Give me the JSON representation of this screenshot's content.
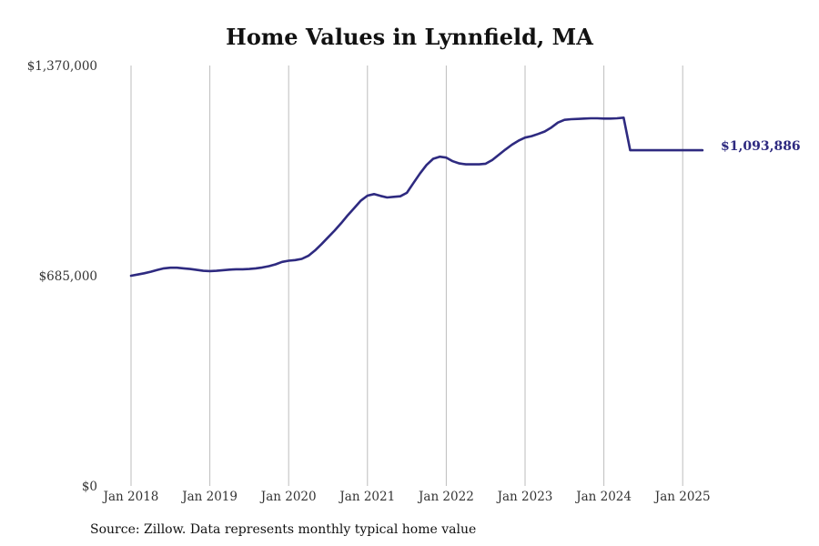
{
  "chart_data": {
    "type": "line",
    "title": "Home Values in Lynnfield, MA",
    "source": "Source: Zillow. Data represents monthly typical home value",
    "ylim": [
      0,
      1370000
    ],
    "yticks": [
      {
        "value": 0,
        "label": "$0"
      },
      {
        "value": 685000,
        "label": "$685,000"
      },
      {
        "value": 1370000,
        "label": "$1,370,000"
      }
    ],
    "xticks": [
      {
        "date": "2018-01",
        "label": "Jan 2018"
      },
      {
        "date": "2019-01",
        "label": "Jan 2019"
      },
      {
        "date": "2020-01",
        "label": "Jan 2020"
      },
      {
        "date": "2021-01",
        "label": "Jan 2021"
      },
      {
        "date": "2022-01",
        "label": "Jan 2022"
      },
      {
        "date": "2023-01",
        "label": "Jan 2023"
      },
      {
        "date": "2024-01",
        "label": "Jan 2024"
      },
      {
        "date": "2025-01",
        "label": "Jan 2025"
      }
    ],
    "grid": {
      "vertical": true,
      "horizontal": false
    },
    "line_color": "#2e2a80",
    "end_label": "$1,093,886",
    "series": [
      {
        "x": [
          "2018-01",
          "2018-02",
          "2018-03",
          "2018-04",
          "2018-05",
          "2018-06",
          "2018-07",
          "2018-08",
          "2018-09",
          "2018-10",
          "2018-11",
          "2018-12",
          "2019-01",
          "2019-02",
          "2019-03",
          "2019-04",
          "2019-05",
          "2019-06",
          "2019-07",
          "2019-08",
          "2019-09",
          "2019-10",
          "2019-11",
          "2019-12",
          "2020-01",
          "2020-02",
          "2020-03",
          "2020-04",
          "2020-05",
          "2020-06",
          "2020-07",
          "2020-08",
          "2020-09",
          "2020-10",
          "2020-11",
          "2020-12",
          "2021-01",
          "2021-02",
          "2021-03",
          "2021-04",
          "2021-05",
          "2021-06",
          "2021-07",
          "2021-08",
          "2021-09",
          "2021-10",
          "2021-11",
          "2021-12",
          "2022-01",
          "2022-02",
          "2022-03",
          "2022-04",
          "2022-05",
          "2022-06",
          "2022-07",
          "2022-08",
          "2022-09",
          "2022-10",
          "2022-11",
          "2022-12",
          "2023-01",
          "2023-02",
          "2023-03",
          "2023-04",
          "2023-05",
          "2023-06",
          "2023-07",
          "2023-08",
          "2023-09",
          "2023-10",
          "2023-11",
          "2023-12",
          "2024-01",
          "2024-02",
          "2024-03",
          "2024-04",
          "2024-05",
          "2024-06",
          "2024-07",
          "2024-08",
          "2024-09",
          "2024-10",
          "2024-11",
          "2024-12",
          "2025-01",
          "2025-02",
          "2025-03",
          "2025-04"
        ],
        "y": [
          685000,
          689000,
          693000,
          698000,
          704000,
          709000,
          711000,
          711000,
          709000,
          707000,
          704000,
          701000,
          700000,
          701000,
          703000,
          705000,
          706000,
          706000,
          707000,
          709000,
          712000,
          716000,
          722000,
          730000,
          734000,
          736000,
          740000,
          750000,
          767000,
          788000,
          810000,
          832000,
          856000,
          882000,
          906000,
          930000,
          946000,
          951000,
          945000,
          940000,
          942000,
          944000,
          955000,
          987000,
          1018000,
          1046000,
          1066000,
          1073000,
          1070000,
          1058000,
          1051000,
          1048000,
          1048000,
          1048000,
          1050000,
          1062000,
          1079000,
          1096000,
          1112000,
          1125000,
          1135000,
          1140000,
          1147000,
          1155000,
          1168000,
          1184000,
          1193000,
          1195000,
          1196000,
          1197000,
          1198000,
          1198000,
          1197000,
          1197000,
          1198000,
          1200000,
          1094000,
          1094000,
          1094000,
          1094000,
          1094000,
          1094000,
          1094000,
          1094000,
          1094000,
          1094000,
          1094000,
          1093886
        ]
      }
    ]
  }
}
